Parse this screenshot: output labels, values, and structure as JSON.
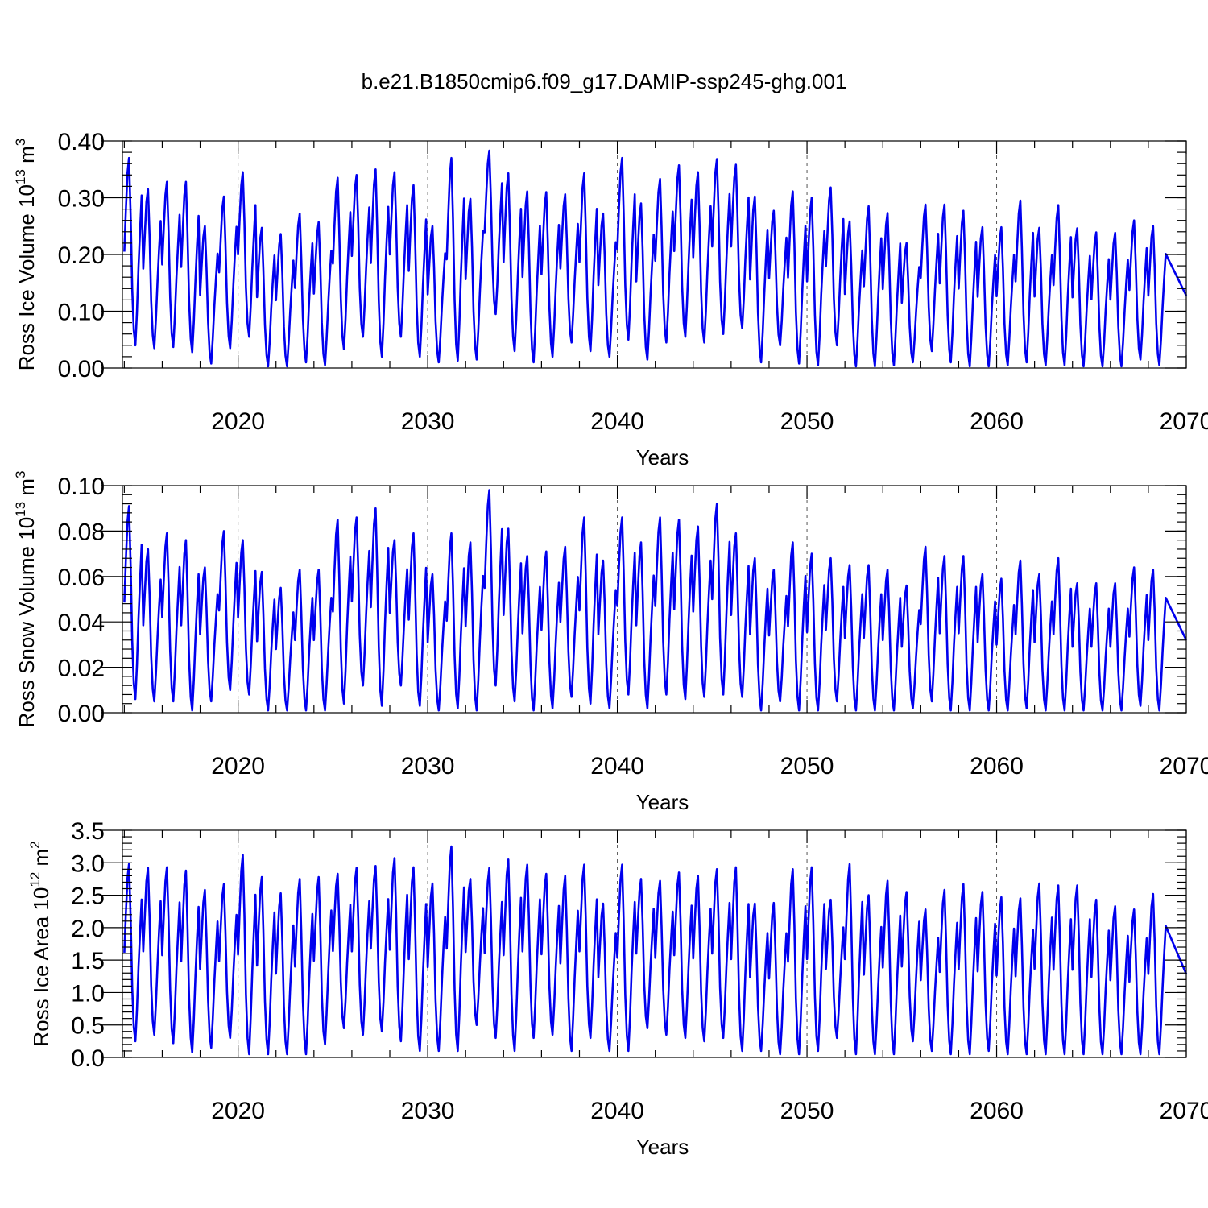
{
  "figure": {
    "title": "b.e21.B1850cmip6.f09_g17.DAMIP-ssp245-ghg.001"
  },
  "chart_data": [
    {
      "type": "line",
      "title": "b.e21.B1850cmip6.f09_g17.DAMIP-ssp245-ghg.001",
      "xlabel": "Years",
      "ylabel": "Ross Ice Volume 10",
      "ylabel_sup": "13",
      "ylabel_unit": " m",
      "ylabel_unit_sup": "3",
      "xlim": [
        2013.9,
        2070.0
      ],
      "ylim": [
        0.0,
        0.4
      ],
      "xticks": [
        2020,
        2030,
        2040,
        2050,
        2060,
        2070
      ],
      "xtick_labels": [
        "2020",
        "2030",
        "2040",
        "2050",
        "2060",
        "2070"
      ],
      "yticks": [
        0.0,
        0.1,
        0.2,
        0.3,
        0.4
      ],
      "ytick_labels": [
        "0.00",
        "0.10",
        "0.20",
        "0.30",
        "0.40"
      ],
      "color": "#0000ee",
      "grid": "dashed vertical at major x ticks",
      "series": [
        {
          "name": "Ross Ice Volume",
          "start_year": 2014,
          "annual_max": [
            0.37,
            0.315,
            0.328,
            0.328,
            0.25,
            0.302,
            0.345,
            0.247,
            0.236,
            0.272,
            0.257,
            0.335,
            0.34,
            0.35,
            0.345,
            0.322,
            0.25,
            0.37,
            0.298,
            0.383,
            0.343,
            0.311,
            0.31,
            0.306,
            0.343,
            0.272,
            0.37,
            0.29,
            0.333,
            0.357,
            0.345,
            0.368,
            0.358,
            0.302,
            0.277,
            0.311,
            0.3,
            0.318,
            0.258,
            0.285,
            0.273,
            0.22,
            0.288,
            0.288,
            0.277,
            0.248,
            0.248,
            0.295,
            0.247,
            0.287,
            0.246,
            0.239,
            0.238,
            0.26,
            0.25
          ],
          "annual_min": [
            0.04,
            0.035,
            0.037,
            0.028,
            0.008,
            0.035,
            0.055,
            0.003,
            0.003,
            0.01,
            0.005,
            0.033,
            0.055,
            0.02,
            0.055,
            0.02,
            0.01,
            0.013,
            0.015,
            0.095,
            0.03,
            0.01,
            0.02,
            0.045,
            0.03,
            0.02,
            0.05,
            0.015,
            0.045,
            0.055,
            0.045,
            0.06,
            0.07,
            0.01,
            0.04,
            0.008,
            0.005,
            0.04,
            0.003,
            0.003,
            0.005,
            0.01,
            0.03,
            0.01,
            0.003,
            0.003,
            0.005,
            0.01,
            0.005,
            0.005,
            0.003,
            0.003,
            0.003,
            0.015,
            0.005
          ]
        }
      ]
    },
    {
      "type": "line",
      "xlabel": "Years",
      "ylabel": "Ross Snow Volume 10",
      "ylabel_sup": "13",
      "ylabel_unit": " m",
      "ylabel_unit_sup": "3",
      "xlim": [
        2013.9,
        2070.0
      ],
      "ylim": [
        0.0,
        0.1
      ],
      "xticks": [
        2020,
        2030,
        2040,
        2050,
        2060,
        2070
      ],
      "xtick_labels": [
        "2020",
        "2030",
        "2040",
        "2050",
        "2060",
        "2070"
      ],
      "yticks": [
        0.0,
        0.02,
        0.04,
        0.06,
        0.08,
        0.1
      ],
      "ytick_labels": [
        "0.00",
        "0.02",
        "0.04",
        "0.06",
        "0.08",
        "0.10"
      ],
      "color": "#0000ee",
      "grid": "dashed vertical at major x ticks",
      "series": [
        {
          "name": "Ross Snow Volume",
          "start_year": 2014,
          "annual_max": [
            0.091,
            0.072,
            0.079,
            0.076,
            0.064,
            0.08,
            0.076,
            0.062,
            0.055,
            0.063,
            0.063,
            0.085,
            0.086,
            0.09,
            0.076,
            0.079,
            0.061,
            0.079,
            0.075,
            0.098,
            0.081,
            0.069,
            0.071,
            0.073,
            0.086,
            0.067,
            0.086,
            0.075,
            0.086,
            0.085,
            0.082,
            0.092,
            0.079,
            0.068,
            0.063,
            0.075,
            0.07,
            0.068,
            0.065,
            0.065,
            0.063,
            0.056,
            0.073,
            0.069,
            0.069,
            0.061,
            0.059,
            0.067,
            0.061,
            0.068,
            0.057,
            0.057,
            0.057,
            0.064,
            0.063
          ],
          "annual_min": [
            0.006,
            0.005,
            0.005,
            0.001,
            0.005,
            0.01,
            0.008,
            0.001,
            0.001,
            0.001,
            0.001,
            0.004,
            0.012,
            0.003,
            0.012,
            0.003,
            0.001,
            0.002,
            0.001,
            0.012,
            0.005,
            0.001,
            0.002,
            0.007,
            0.004,
            0.002,
            0.008,
            0.002,
            0.008,
            0.006,
            0.007,
            0.008,
            0.007,
            0.001,
            0.005,
            0.001,
            0.001,
            0.005,
            0.001,
            0.001,
            0.001,
            0.002,
            0.005,
            0.001,
            0.001,
            0.001,
            0.001,
            0.002,
            0.001,
            0.001,
            0.001,
            0.001,
            0.001,
            0.003,
            0.001
          ]
        }
      ]
    },
    {
      "type": "line",
      "xlabel": "Years",
      "ylabel": "Ross Ice Area 10",
      "ylabel_sup": "12",
      "ylabel_unit": " m",
      "ylabel_unit_sup": "2",
      "xlim": [
        2013.9,
        2070.0
      ],
      "ylim": [
        0.0,
        3.5
      ],
      "xticks": [
        2020,
        2030,
        2040,
        2050,
        2060,
        2070
      ],
      "xtick_labels": [
        "2020",
        "2030",
        "2040",
        "2050",
        "2060",
        "2070"
      ],
      "yticks": [
        0.0,
        0.5,
        1.0,
        1.5,
        2.0,
        2.5,
        3.0,
        3.5
      ],
      "ytick_labels": [
        "0.0",
        "0.5",
        "1.0",
        "1.5",
        "2.0",
        "2.5",
        "3.0",
        "3.5"
      ],
      "color": "#0000ee",
      "grid": "dashed vertical at major x ticks",
      "series": [
        {
          "name": "Ross Ice Area",
          "start_year": 2014,
          "annual_max": [
            2.98,
            2.92,
            2.93,
            2.88,
            2.58,
            2.67,
            3.12,
            2.78,
            2.53,
            2.75,
            2.78,
            2.83,
            2.92,
            2.95,
            3.07,
            2.93,
            2.68,
            3.25,
            2.75,
            2.92,
            3.05,
            2.97,
            2.83,
            2.8,
            2.97,
            2.37,
            2.97,
            2.75,
            2.72,
            2.85,
            2.8,
            2.9,
            2.93,
            2.37,
            2.38,
            2.9,
            2.93,
            2.43,
            2.98,
            2.5,
            2.72,
            2.55,
            2.28,
            2.58,
            2.67,
            2.55,
            2.47,
            2.45,
            2.68,
            2.65,
            2.65,
            2.43,
            2.33,
            2.28,
            2.52
          ],
          "annual_min": [
            0.25,
            0.35,
            0.22,
            0.08,
            0.15,
            0.3,
            0.05,
            0.05,
            0.05,
            0.05,
            0.2,
            0.45,
            0.35,
            0.4,
            0.25,
            0.1,
            0.1,
            0.1,
            0.5,
            0.3,
            0.1,
            0.3,
            0.35,
            0.1,
            0.3,
            0.1,
            0.1,
            0.45,
            0.35,
            0.3,
            0.25,
            0.3,
            0.1,
            0.1,
            0.05,
            0.05,
            0.1,
            0.3,
            0.05,
            0.05,
            0.05,
            0.25,
            0.1,
            0.05,
            0.05,
            0.1,
            0.05,
            0.05,
            0.05,
            0.05,
            0.05,
            0.05,
            0.05,
            0.05,
            0.05
          ]
        }
      ]
    }
  ]
}
